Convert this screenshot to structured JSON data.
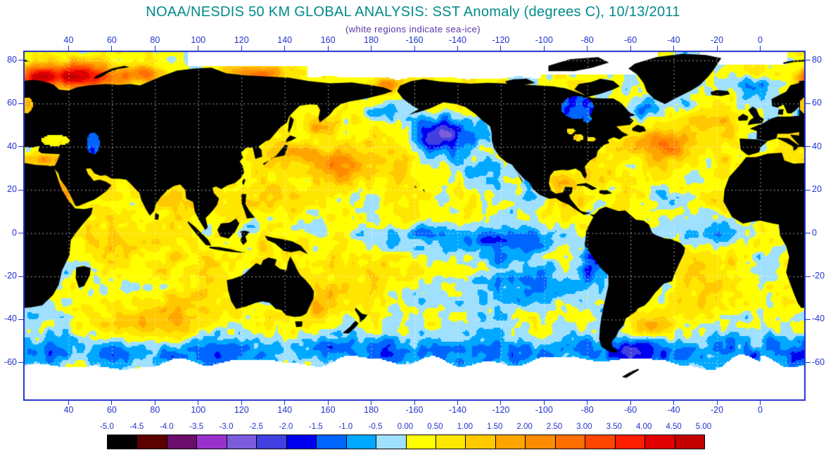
{
  "title": "NOAA/NESDIS 50 KM GLOBAL ANALYSIS: SST Anomaly (degrees C), 10/13/2011",
  "subtitle": "(white regions indicate sea-ice)",
  "colors": {
    "title": "#008B8B",
    "subtitle": "#5533AA",
    "axis": "#2233CC",
    "frame": "#2233CC",
    "land": "#000000",
    "sea_ice": "#FFFFFF",
    "gridline": "#FFFFFF",
    "colorbar_border": "#000000"
  },
  "axes": {
    "lon_ticks": [
      {
        "label": "40",
        "lon": 40
      },
      {
        "label": "60",
        "lon": 60
      },
      {
        "label": "80",
        "lon": 80
      },
      {
        "label": "100",
        "lon": 100
      },
      {
        "label": "120",
        "lon": 120
      },
      {
        "label": "140",
        "lon": 140
      },
      {
        "label": "160",
        "lon": 160
      },
      {
        "label": "180",
        "lon": 180
      },
      {
        "label": "-160",
        "lon": 200
      },
      {
        "label": "-140",
        "lon": 220
      },
      {
        "label": "-120",
        "lon": 240
      },
      {
        "label": "-100",
        "lon": 260
      },
      {
        "label": "-80",
        "lon": 280
      },
      {
        "label": "-60",
        "lon": 300
      },
      {
        "label": "-40",
        "lon": 320
      },
      {
        "label": "-20",
        "lon": 340
      },
      {
        "label": "0",
        "lon": 360
      }
    ],
    "lat_ticks": [
      {
        "label": "80",
        "lat": 80
      },
      {
        "label": "60",
        "lat": 60
      },
      {
        "label": "40",
        "lat": 40
      },
      {
        "label": "20",
        "lat": 20
      },
      {
        "label": "0",
        "lat": 0
      },
      {
        "label": "-20",
        "lat": -20
      },
      {
        "label": "-40",
        "lat": -40
      },
      {
        "label": "-60",
        "lat": -60
      }
    ]
  },
  "colorbar": {
    "range_min": -5.0,
    "range_max": 5.0,
    "step": 0.5,
    "tick_labels": [
      "-5.0",
      "-4.5",
      "-4.0",
      "-3.5",
      "-3.0",
      "-2.5",
      "-2.0",
      "-1.5",
      "-1.0",
      "-0.5",
      "0.00",
      "0.50",
      "1.00",
      "1.50",
      "2.00",
      "2.50",
      "3.00",
      "3.50",
      "4.00",
      "4.50",
      "5.00"
    ],
    "segment_colors": [
      "#000000",
      "#5C0000",
      "#6B0D6B",
      "#9932CC",
      "#7A5CDC",
      "#4040E0",
      "#0000F0",
      "#0064FF",
      "#00A8FF",
      "#A0E0FF",
      "#FFFF00",
      "#FFE600",
      "#FFC800",
      "#FFA500",
      "#FF8C00",
      "#FF6E00",
      "#FF4600",
      "#FF1E00",
      "#E10000",
      "#C30000"
    ]
  },
  "map": {
    "anomaly_features": [
      {
        "name": "barents-kara-warm",
        "lon": 45,
        "lat": 73,
        "rlon": 20,
        "rlat": 6,
        "amp": 4.2
      },
      {
        "name": "norwegian-sea-warm",
        "lon": 24,
        "lat": 72,
        "rlon": 8,
        "rlat": 5,
        "amp": 3.0
      },
      {
        "name": "kara-warm",
        "lon": 75,
        "lat": 74,
        "rlon": 10,
        "rlat": 4,
        "amp": 2.6
      },
      {
        "name": "east-siberian-arctic-warm",
        "lon": 128,
        "lat": 74,
        "rlon": 16,
        "rlat": 4,
        "amp": 2.4
      },
      {
        "name": "chukchi-warm",
        "lon": 186,
        "lat": 69,
        "rlon": 9,
        "rlat": 3.5,
        "amp": 2.0
      },
      {
        "name": "bering-cold",
        "lon": 183,
        "lat": 57,
        "rlon": 11,
        "rlat": 4.5,
        "amp": -1.2
      },
      {
        "name": "west-north-pacific-warm",
        "lon": 165,
        "lat": 32,
        "rlon": 24,
        "rlat": 8,
        "amp": 1.5
      },
      {
        "name": "kuroshio-warm",
        "lon": 146,
        "lat": 38,
        "rlon": 8,
        "rlat": 4,
        "amp": 1.4
      },
      {
        "name": "okhotsk-warm",
        "lon": 156,
        "lat": 49,
        "rlon": 8,
        "rlat": 5,
        "amp": 1.5
      },
      {
        "name": "northeast-pacific-cold",
        "lon": 215,
        "lat": 46,
        "rlon": 20,
        "rlat": 9,
        "amp": -2.3
      },
      {
        "name": "california-cold",
        "lon": 236,
        "lat": 29,
        "rlon": 8,
        "rlat": 7,
        "amp": -1.1
      },
      {
        "name": "la-nina-equatorial-cold-tongue",
        "lon": 232,
        "lat": -2,
        "rlon": 46,
        "rlat": 7,
        "amp": -1.7
      },
      {
        "name": "southeast-pacific-cold",
        "lon": 255,
        "lat": -23,
        "rlon": 28,
        "rlat": 12,
        "amp": -1.5
      },
      {
        "name": "peru-coastal-cold",
        "lon": 283,
        "lat": -12,
        "rlon": 8,
        "rlat": 8,
        "amp": -1.1
      },
      {
        "name": "west-pacific-warm-pool",
        "lon": 136,
        "lat": -7,
        "rlon": 17,
        "rlat": 8,
        "amp": 0.9
      },
      {
        "name": "coral-tasman-warm",
        "lon": 159,
        "lat": -31,
        "rlon": 12,
        "rlat": 8,
        "amp": 1.2
      },
      {
        "name": "west-australia-warm",
        "lon": 106,
        "lat": -28,
        "rlon": 9,
        "rlat": 8,
        "amp": 1.1
      },
      {
        "name": "indian-ocean-warm",
        "lon": 75,
        "lat": -8,
        "rlon": 28,
        "rlat": 12,
        "amp": 0.6
      },
      {
        "name": "south-indian-warm-band",
        "lon": 80,
        "lat": -38,
        "rlon": 32,
        "rlat": 8,
        "amp": 0.9
      },
      {
        "name": "mediterranean-warm",
        "lon": 28,
        "lat": 34,
        "rlon": 9,
        "rlat": 3,
        "amp": 1.4
      },
      {
        "name": "red-sea-warm",
        "lon": 38,
        "lat": 19,
        "rlon": 4,
        "rlat": 6,
        "amp": 1.4
      },
      {
        "name": "northwest-atlantic-warm",
        "lon": 315,
        "lat": 41,
        "rlon": 13,
        "rlat": 7,
        "amp": 1.8
      },
      {
        "name": "subpolar-atlantic-warm",
        "lon": 334,
        "lat": 54,
        "rlon": 11,
        "rlat": 6,
        "amp": 1.2
      },
      {
        "name": "labrador-cold",
        "lon": 305,
        "lat": 58,
        "rlon": 8,
        "rlat": 5,
        "amp": -1.5
      },
      {
        "name": "greenland-sea-cold",
        "lon": 354,
        "lat": 70,
        "rlon": 11,
        "rlat": 5,
        "amp": -1.3
      },
      {
        "name": "equatorial-atlantic-cold",
        "lon": 345,
        "lat": 0,
        "rlon": 18,
        "rlat": 6,
        "amp": -0.8
      },
      {
        "name": "south-atlantic-warm",
        "lon": 338,
        "lat": -30,
        "rlon": 16,
        "rlat": 10,
        "amp": 0.9
      },
      {
        "name": "southwest-atlantic-warm-eddy",
        "lon": 310,
        "lat": -43,
        "rlon": 8,
        "rlat": 6,
        "amp": 1.5
      },
      {
        "name": "falkland-cold",
        "lon": 302,
        "lat": -52,
        "rlon": 13,
        "rlat": 6,
        "amp": -1.3
      },
      {
        "name": "gulf-of-mexico-warm",
        "lon": 265,
        "lat": 25,
        "rlon": 8,
        "rlat": 4,
        "amp": 0.8
      },
      {
        "name": "caribbean-warm",
        "lon": 285,
        "lat": 15,
        "rlon": 12,
        "rlat": 5,
        "amp": 0.5
      },
      {
        "name": "circumpolar-southern-cold-band",
        "lon": 180,
        "lat": -55,
        "rlon": 500,
        "rlat": 8,
        "amp": -1.25
      }
    ]
  }
}
